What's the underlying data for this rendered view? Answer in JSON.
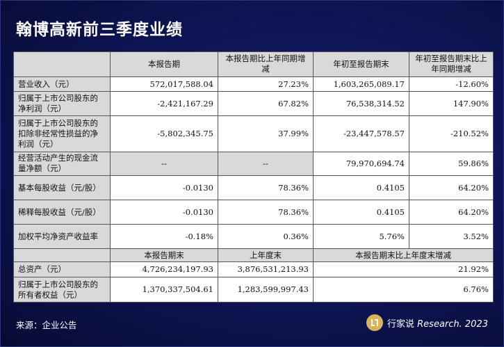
{
  "title": "翰博高新前三季度业绩",
  "table": {
    "header": [
      "",
      "本报告期",
      "本报告期比上年同期增减",
      "年初至报告期末",
      "年初至报告期末比上年同期增减"
    ],
    "rows": [
      {
        "label": "营业收入（元）",
        "c1": "572,017,588.04",
        "c2": "27.23%",
        "c3": "1,603,265,089.17",
        "c4": "-12.60%"
      },
      {
        "label": "归属于上市公司股东的净利润（元）",
        "c1": "-2,421,167.29",
        "c2": "67.82%",
        "c3": "76,538,314.52",
        "c4": "147.90%"
      },
      {
        "label": "归属于上市公司股东的扣除非经常性损益的净利润（元）",
        "c1": "-5,802,345.75",
        "c2": "37.99%",
        "c3": "-23,447,578.57",
        "c4": "-210.52%"
      },
      {
        "label": "经营活动产生的现金流量净额（元）",
        "c1": "--",
        "c2": "--",
        "c3": "79,970,694.74",
        "c4": "59.86%"
      },
      {
        "label": "基本每股收益（元/股）",
        "c1": "-0.0130",
        "c2": "78.36%",
        "c3": "0.4105",
        "c4": "64.20%"
      },
      {
        "label": "稀释每股收益（元/股）",
        "c1": "-0.0130",
        "c2": "78.36%",
        "c3": "0.4105",
        "c4": "64.20%"
      },
      {
        "label": "加权平均净资产收益率",
        "c1": "-0.18%",
        "c2": "0.36%",
        "c3": "5.76%",
        "c4": "3.52%"
      }
    ],
    "header2": [
      "",
      "本报告期末",
      "上年度末",
      "本报告期末比上年度末增减"
    ],
    "rows2": [
      {
        "label": "总资产（元）",
        "c1": "4,726,234,197.93",
        "c2": "3,876,531,213.93",
        "c3": "21.92%"
      },
      {
        "label": "归属于上市公司股东的所有者权益（元）",
        "c1": "1,370,337,504.61",
        "c2": "1,283,599,997.43",
        "c3": "6.76%"
      }
    ]
  },
  "footer": {
    "source": "来源：企业公告",
    "brand_icon": "quote-bracket-icon",
    "brand_name": "行家说",
    "brand_tag": "Research. 2023"
  }
}
